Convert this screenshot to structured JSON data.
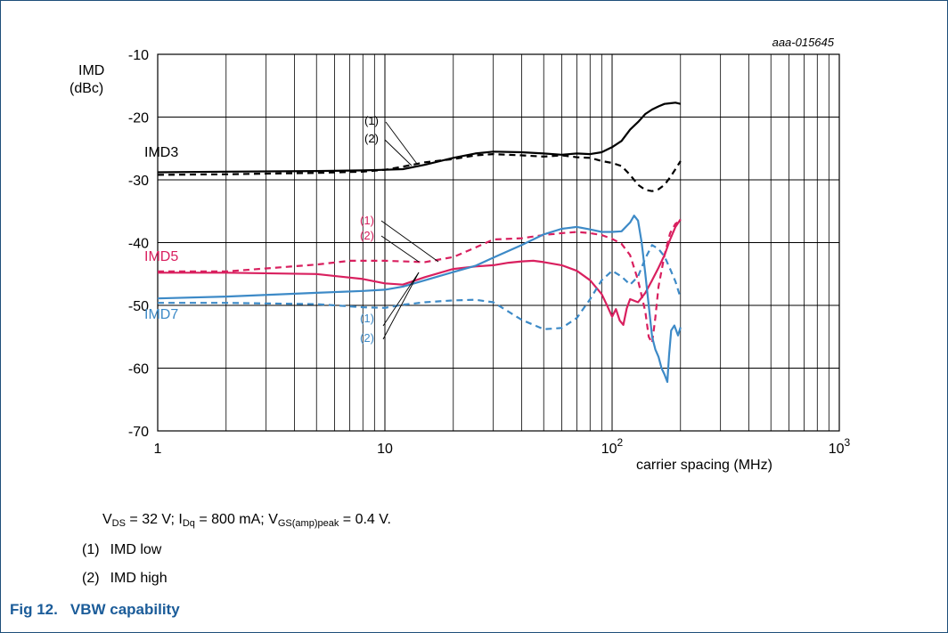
{
  "figure": {
    "caption_number": "Fig 12.",
    "caption_title": "VBW capability",
    "code": "aaa-015645"
  },
  "conditions": {
    "vds": {
      "sym": "V",
      "sub": "DS",
      "text": " = 32 V; "
    },
    "idq": {
      "sym": "I",
      "sub": "Dq",
      "text": " = 800 mA; "
    },
    "vgs": {
      "sym": "V",
      "sub": "GS(amp)peak",
      "text": " = 0.4 V."
    }
  },
  "notes": [
    {
      "num": "(1)",
      "text": "IMD low"
    },
    {
      "num": "(2)",
      "text": "IMD high"
    }
  ],
  "chart_data": {
    "type": "line",
    "ylabel": "IMD",
    "yunit": "(dBc)",
    "xlabel": "carrier spacing (MHz)",
    "x_scale": "log",
    "xlim": [
      1,
      1000
    ],
    "ylim": [
      -70,
      -10
    ],
    "grid": true,
    "xticks": [
      {
        "v": 1,
        "base": "1",
        "exp": ""
      },
      {
        "v": 10,
        "base": "10",
        "exp": ""
      },
      {
        "v": 100,
        "base": "10",
        "exp": "2"
      },
      {
        "v": 1000,
        "base": "10",
        "exp": "3"
      }
    ],
    "yticks": [
      -10,
      -20,
      -30,
      -40,
      -50,
      -60,
      -70
    ],
    "colors": {
      "IMD3": "#000000",
      "IMD5": "#d9205f",
      "IMD7": "#3d8ac7"
    },
    "groups": [
      {
        "label": "IMD3",
        "color": "#000000",
        "marker1": "(1)",
        "marker2": "(2)"
      },
      {
        "label": "IMD5",
        "color": "#d9205f",
        "marker1": "(1)",
        "marker2": "(2)"
      },
      {
        "label": "IMD7",
        "color": "#3d8ac7",
        "marker1": "(1)",
        "marker2": "(2)"
      }
    ],
    "series": [
      {
        "group": "IMD3",
        "marker": "(1)",
        "style": "solid",
        "color": "#000000",
        "points": [
          [
            1,
            -28.8
          ],
          [
            2,
            -28.7
          ],
          [
            5,
            -28.6
          ],
          [
            8,
            -28.5
          ],
          [
            10,
            -28.4
          ],
          [
            12,
            -28.3
          ],
          [
            15,
            -27.6
          ],
          [
            20,
            -26.5
          ],
          [
            25,
            -25.8
          ],
          [
            30,
            -25.5
          ],
          [
            40,
            -25.6
          ],
          [
            50,
            -25.8
          ],
          [
            60,
            -26
          ],
          [
            70,
            -25.8
          ],
          [
            80,
            -25.9
          ],
          [
            90,
            -25.6
          ],
          [
            100,
            -24.8
          ],
          [
            110,
            -23.8
          ],
          [
            120,
            -22
          ],
          [
            130,
            -20.8
          ],
          [
            140,
            -19.5
          ],
          [
            150,
            -18.8
          ],
          [
            160,
            -18.3
          ],
          [
            170,
            -17.9
          ],
          [
            180,
            -17.8
          ],
          [
            190,
            -17.7
          ],
          [
            200,
            -17.9
          ]
        ]
      },
      {
        "group": "IMD3",
        "marker": "(2)",
        "style": "dashed",
        "color": "#000000",
        "points": [
          [
            1,
            -29.2
          ],
          [
            2,
            -29.1
          ],
          [
            5,
            -28.9
          ],
          [
            8,
            -28.7
          ],
          [
            10,
            -28.4
          ],
          [
            12,
            -27.9
          ],
          [
            15,
            -27.2
          ],
          [
            20,
            -26.7
          ],
          [
            25,
            -26.1
          ],
          [
            30,
            -25.9
          ],
          [
            40,
            -26.1
          ],
          [
            50,
            -26.3
          ],
          [
            60,
            -26.1
          ],
          [
            70,
            -26.4
          ],
          [
            80,
            -26.5
          ],
          [
            90,
            -27
          ],
          [
            100,
            -27.3
          ],
          [
            110,
            -27.8
          ],
          [
            120,
            -29.2
          ],
          [
            130,
            -30.8
          ],
          [
            140,
            -31.6
          ],
          [
            150,
            -31.8
          ],
          [
            160,
            -31.5
          ],
          [
            170,
            -30.8
          ],
          [
            180,
            -29.6
          ],
          [
            190,
            -28.3
          ],
          [
            200,
            -27
          ]
        ]
      },
      {
        "group": "IMD5",
        "marker": "(1)",
        "style": "solid",
        "color": "#d9205f",
        "points": [
          [
            1,
            -44.8
          ],
          [
            2,
            -44.8
          ],
          [
            5,
            -45
          ],
          [
            8,
            -45.8
          ],
          [
            10,
            -46.5
          ],
          [
            12,
            -46.7
          ],
          [
            15,
            -45.5
          ],
          [
            20,
            -44.2
          ],
          [
            25,
            -43.8
          ],
          [
            30,
            -43.6
          ],
          [
            35,
            -43.2
          ],
          [
            40,
            -43
          ],
          [
            45,
            -42.9
          ],
          [
            50,
            -43.1
          ],
          [
            60,
            -43.6
          ],
          [
            70,
            -44.5
          ],
          [
            80,
            -46
          ],
          [
            90,
            -48.2
          ],
          [
            95,
            -50
          ],
          [
            100,
            -51.8
          ],
          [
            104,
            -50.6
          ],
          [
            108,
            -52.4
          ],
          [
            112,
            -53.1
          ],
          [
            116,
            -50.5
          ],
          [
            120,
            -49
          ],
          [
            130,
            -49.5
          ],
          [
            140,
            -48
          ],
          [
            150,
            -46
          ],
          [
            160,
            -44
          ],
          [
            170,
            -42
          ],
          [
            180,
            -39.5
          ],
          [
            190,
            -37.5
          ],
          [
            200,
            -36.3
          ]
        ]
      },
      {
        "group": "IMD5",
        "marker": "(2)",
        "style": "dashed",
        "color": "#d9205f",
        "points": [
          [
            1,
            -44.6
          ],
          [
            2,
            -44.6
          ],
          [
            5,
            -43.5
          ],
          [
            7,
            -42.9
          ],
          [
            10,
            -42.9
          ],
          [
            15,
            -43.1
          ],
          [
            20,
            -42.3
          ],
          [
            25,
            -40.8
          ],
          [
            30,
            -39.5
          ],
          [
            40,
            -39.3
          ],
          [
            50,
            -38.8
          ],
          [
            60,
            -38.5
          ],
          [
            70,
            -38.3
          ],
          [
            80,
            -38.5
          ],
          [
            90,
            -38.8
          ],
          [
            100,
            -39.4
          ],
          [
            110,
            -40.2
          ],
          [
            120,
            -42
          ],
          [
            130,
            -46
          ],
          [
            140,
            -51
          ],
          [
            145,
            -55
          ],
          [
            150,
            -56
          ],
          [
            155,
            -52
          ],
          [
            160,
            -47
          ],
          [
            170,
            -42
          ],
          [
            180,
            -38.5
          ],
          [
            190,
            -37
          ],
          [
            200,
            -36.5
          ]
        ]
      },
      {
        "group": "IMD7",
        "marker": "(1)",
        "style": "solid",
        "color": "#3d8ac7",
        "points": [
          [
            1,
            -48.9
          ],
          [
            2,
            -48.6
          ],
          [
            5,
            -48
          ],
          [
            8,
            -47.7
          ],
          [
            10,
            -47.5
          ],
          [
            12,
            -47
          ],
          [
            15,
            -46
          ],
          [
            20,
            -44.7
          ],
          [
            25,
            -43.7
          ],
          [
            30,
            -42.4
          ],
          [
            40,
            -40.4
          ],
          [
            50,
            -38.7
          ],
          [
            60,
            -37.8
          ],
          [
            70,
            -37.5
          ],
          [
            80,
            -37.9
          ],
          [
            90,
            -38.3
          ],
          [
            100,
            -38.3
          ],
          [
            110,
            -38.2
          ],
          [
            120,
            -36.8
          ],
          [
            125,
            -35.7
          ],
          [
            130,
            -36.5
          ],
          [
            135,
            -40
          ],
          [
            140,
            -45
          ],
          [
            145,
            -50
          ],
          [
            150,
            -55
          ],
          [
            155,
            -57
          ],
          [
            160,
            -58.2
          ],
          [
            165,
            -60
          ],
          [
            170,
            -61
          ],
          [
            175,
            -62.2
          ],
          [
            178,
            -58
          ],
          [
            182,
            -54
          ],
          [
            188,
            -53.2
          ],
          [
            195,
            -54.8
          ],
          [
            200,
            -53.5
          ]
        ]
      },
      {
        "group": "IMD7",
        "marker": "(2)",
        "style": "dashed",
        "color": "#3d8ac7",
        "points": [
          [
            1,
            -49.6
          ],
          [
            2,
            -49.6
          ],
          [
            5,
            -49.8
          ],
          [
            8,
            -50.3
          ],
          [
            10,
            -50.4
          ],
          [
            12,
            -49.9
          ],
          [
            15,
            -49.5
          ],
          [
            20,
            -49.2
          ],
          [
            25,
            -49.1
          ],
          [
            30,
            -49.5
          ],
          [
            40,
            -52.3
          ],
          [
            50,
            -53.8
          ],
          [
            60,
            -53.6
          ],
          [
            70,
            -52
          ],
          [
            80,
            -49
          ],
          [
            90,
            -46
          ],
          [
            100,
            -44.5
          ],
          [
            110,
            -45.4
          ],
          [
            120,
            -46.7
          ],
          [
            130,
            -45.4
          ],
          [
            140,
            -42.5
          ],
          [
            150,
            -40.4
          ],
          [
            160,
            -41
          ],
          [
            170,
            -42.2
          ],
          [
            180,
            -44.2
          ],
          [
            190,
            -46.2
          ],
          [
            200,
            -48.8
          ]
        ]
      }
    ]
  }
}
